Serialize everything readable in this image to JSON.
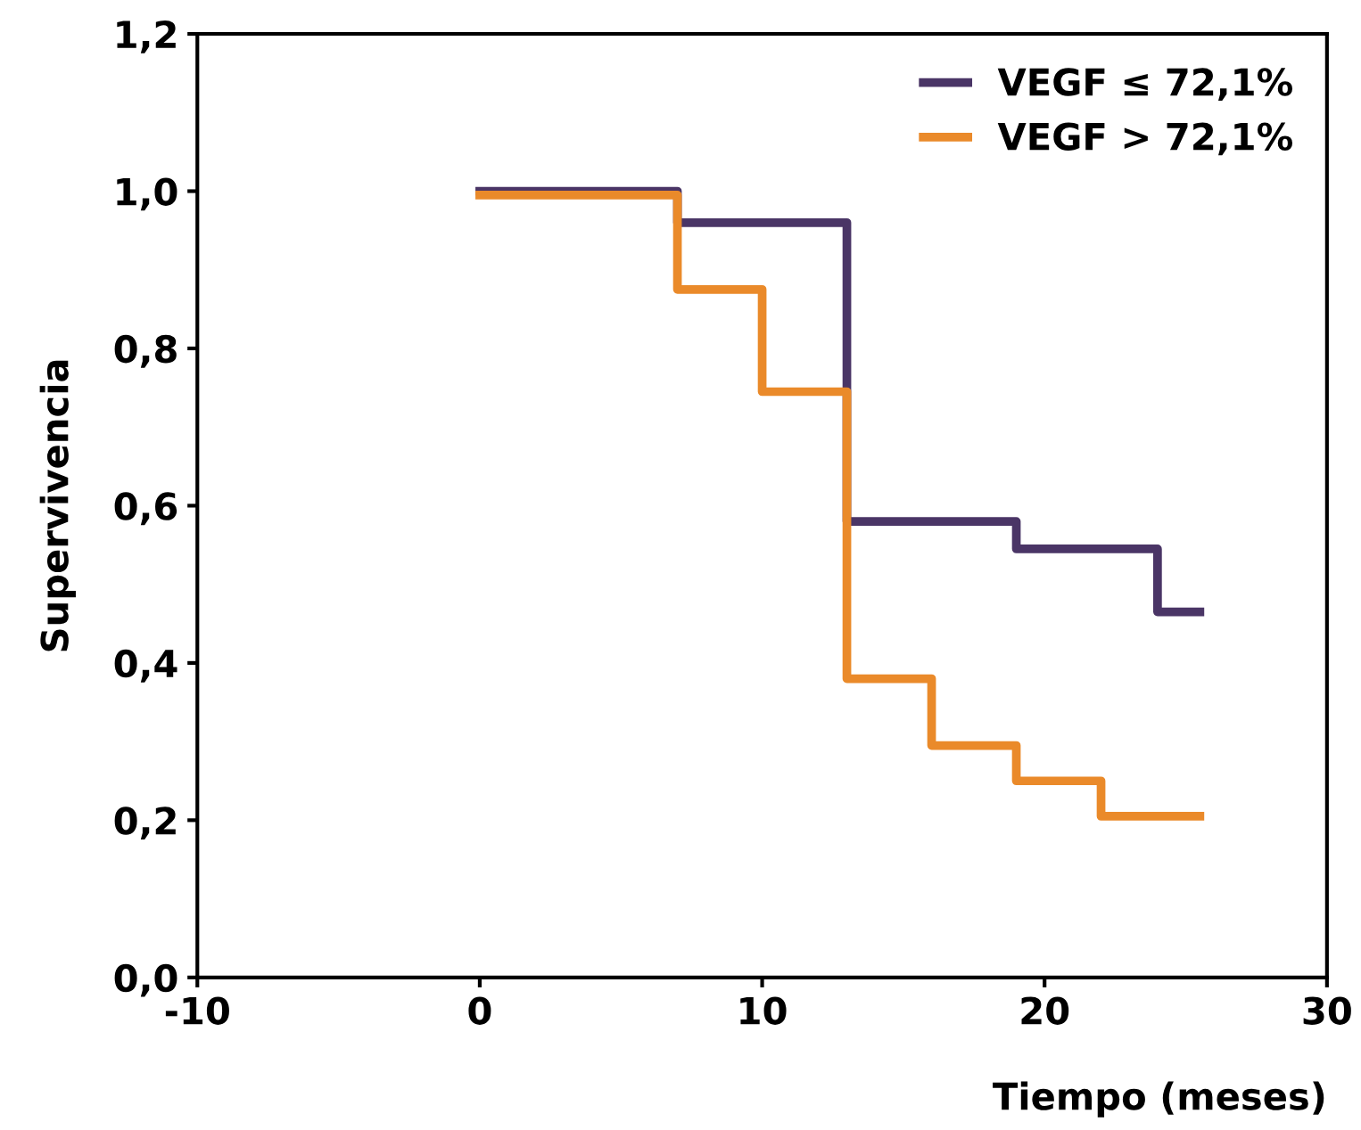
{
  "chart_data": {
    "type": "step",
    "xlabel": "Tiempo (meses)",
    "ylabel": "Supervivencia",
    "xlim": [
      -10,
      30
    ],
    "xticks": [
      -10,
      0,
      10,
      20,
      30
    ],
    "ylim": [
      0,
      1.2
    ],
    "yticks": [
      {
        "value": 0,
        "label": "0,0"
      },
      {
        "value": 0.2,
        "label": "0,2"
      },
      {
        "value": 0.4,
        "label": "0,4"
      },
      {
        "value": 0.6,
        "label": "0,6"
      },
      {
        "value": 0.8,
        "label": "0,8"
      },
      {
        "value": 1.0,
        "label": "1,0"
      },
      {
        "value": 1.2,
        "label": "1,2"
      }
    ],
    "grid": false,
    "legend": "top right",
    "marker": "none",
    "line_style": "solid",
    "series": [
      {
        "name": "VEGF ≤ 72,1%",
        "color": "#4a3566",
        "x": [
          0,
          7,
          13,
          19,
          24,
          25.5
        ],
        "values": [
          1.0,
          0.96,
          0.58,
          0.545,
          0.465,
          0.465
        ]
      },
      {
        "name": "VEGF > 72,1%",
        "color": "#ea8a2a",
        "x": [
          0,
          7,
          10,
          13,
          16,
          19,
          22,
          25.5
        ],
        "values": [
          0.995,
          0.875,
          0.745,
          0.38,
          0.295,
          0.25,
          0.205,
          0.205
        ]
      }
    ]
  }
}
